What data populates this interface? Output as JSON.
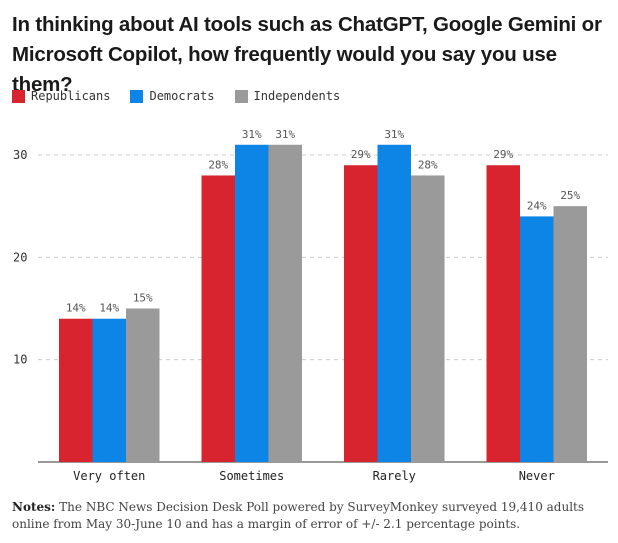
{
  "colors": {
    "republicans": "#d7242f",
    "democrats": "#0d85e6",
    "independents": "#9a9a9a",
    "gridline": "#cccccc",
    "axis": "#333333"
  },
  "notes": {
    "label": "Notes:",
    "text": "The NBC News Decision Desk Poll powered by SurveyMonkey surveyed 19,410 adults online from May 30-June 10 and has a margin of error of +/- 2.1 percentage points."
  },
  "chart_data": {
    "type": "bar",
    "title": "In thinking about AI tools such as ChatGPT, Google Gemini or Microsoft Copilot, how frequently would you say you use them?",
    "categories": [
      "Very often",
      "Sometimes",
      "Rarely",
      "Never"
    ],
    "series": [
      {
        "name": "Republicans",
        "color": "#d7242f",
        "values": [
          14,
          28,
          29,
          29
        ],
        "labels": [
          "14%",
          "28%",
          "29%",
          "29%"
        ]
      },
      {
        "name": "Democrats",
        "color": "#0d85e6",
        "values": [
          14,
          31,
          31,
          24
        ],
        "labels": [
          "14%",
          "31%",
          "31%",
          "24%"
        ]
      },
      {
        "name": "Independents",
        "color": "#9a9a9a",
        "values": [
          15,
          31,
          28,
          25
        ],
        "labels": [
          "15%",
          "31%",
          "28%",
          "25%"
        ]
      }
    ],
    "yticks": [
      "10",
      "20",
      "30"
    ],
    "ylim": [
      0,
      30
    ],
    "grid": true,
    "legend": "top-left"
  }
}
